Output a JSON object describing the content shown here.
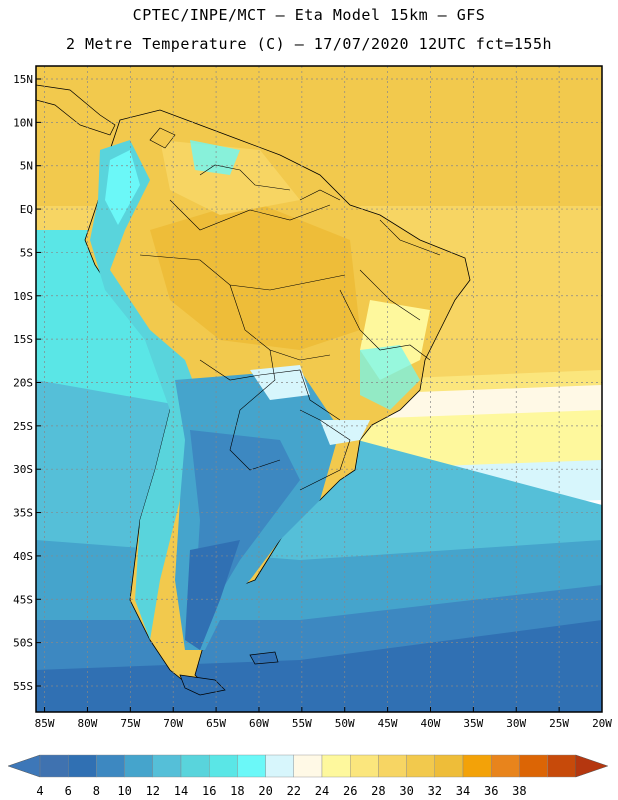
{
  "header": {
    "line1": "CPTEC/INPE/MCT –  Eta Model 15km – GFS",
    "line2": "2 Metre Temperature (C) – 17/07/2020 12UTC fct=155h"
  },
  "axes": {
    "lat_labels": [
      "15N",
      "10N",
      "5N",
      "EQ",
      "5S",
      "10S",
      "15S",
      "20S",
      "25S",
      "30S",
      "35S",
      "40S",
      "45S",
      "50S",
      "55S"
    ],
    "lat_values": [
      15,
      10,
      5,
      0,
      -5,
      -10,
      -15,
      -20,
      -25,
      -30,
      -35,
      -40,
      -45,
      -50,
      -55
    ],
    "lon_labels": [
      "85W",
      "80W",
      "75W",
      "70W",
      "65W",
      "60W",
      "55W",
      "50W",
      "45W",
      "40W",
      "35W",
      "30W",
      "25W",
      "20W"
    ],
    "lon_values": [
      -85,
      -80,
      -75,
      -70,
      -65,
      -60,
      -55,
      -50,
      -45,
      -40,
      -35,
      -30,
      -25,
      -20
    ],
    "lat_range": [
      -58,
      16.5
    ],
    "lon_range": [
      -86,
      -20
    ],
    "grid": true
  },
  "colorbar": {
    "labels": [
      "4",
      "6",
      "8",
      "10",
      "12",
      "14",
      "16",
      "18",
      "20",
      "22",
      "24",
      "26",
      "28",
      "30",
      "32",
      "34",
      "36",
      "38"
    ],
    "colors": [
      "#3f72b0",
      "#3070b3",
      "#3d88c1",
      "#45a4cc",
      "#55bfd8",
      "#59d4dc",
      "#5ae6e6",
      "#6bf8f8",
      "#d7f6fc",
      "#fff9e6",
      "#fef89d",
      "#fbe67d",
      "#f7d563",
      "#f2c94d",
      "#eebd39",
      "#f3a208",
      "#e8841c",
      "#dc6505",
      "#c74a0a",
      "#b5370f"
    ],
    "left_color": "#3d77b8",
    "right_color": "#b5370f"
  }
}
